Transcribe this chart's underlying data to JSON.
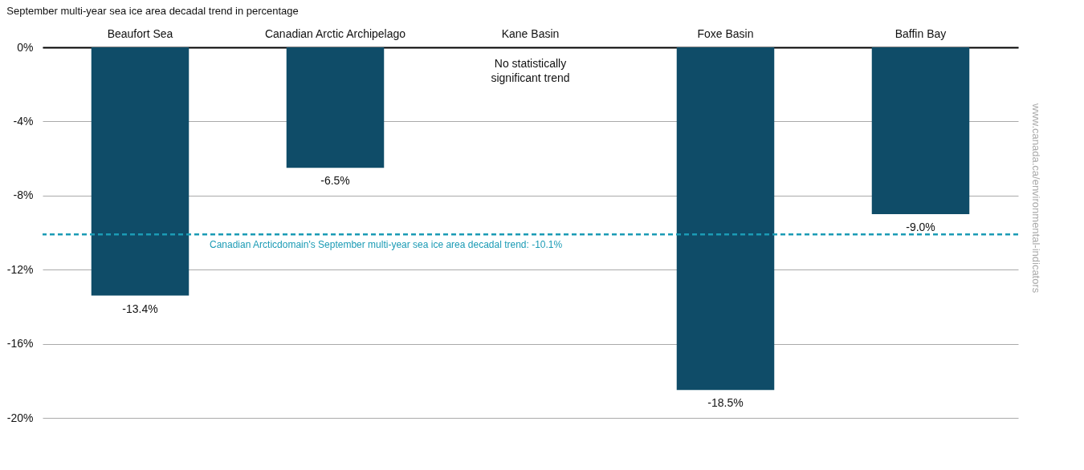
{
  "chart_data": {
    "type": "bar",
    "title": "September multi-year sea ice area decadal trend in percentage",
    "categories": [
      "Beaufort Sea",
      "Canadian Arctic Archipelago",
      "Kane Basin",
      "Foxe Basin",
      "Baffin Bay"
    ],
    "values": [
      -13.4,
      -6.5,
      null,
      -18.5,
      -9.0
    ],
    "value_labels": [
      "-13.4%",
      "-6.5%",
      null,
      "-18.5%",
      "-9.0%"
    ],
    "color": "#0f4c68",
    "ylim": [
      -20,
      0
    ],
    "yticks": [
      {
        "value": 0,
        "label": "0%"
      },
      {
        "value": -4,
        "label": "-4%"
      },
      {
        "value": -8,
        "label": "-8%"
      },
      {
        "value": -12,
        "label": "-12%"
      },
      {
        "value": -16,
        "label": "-16%"
      },
      {
        "value": -20,
        "label": "-20%"
      }
    ],
    "grid": "y",
    "ref_lines": [
      {
        "axis": "y",
        "value": -10.1,
        "label": "Canadian Arcticdomain's September multi-year sea ice area decadal trend: -10.1%",
        "color": "#1b9bb5",
        "line_style": "dashed"
      }
    ],
    "annotations": [
      "No statistically significant trend",
      "www.canada.ca/environmental-indicators"
    ]
  }
}
